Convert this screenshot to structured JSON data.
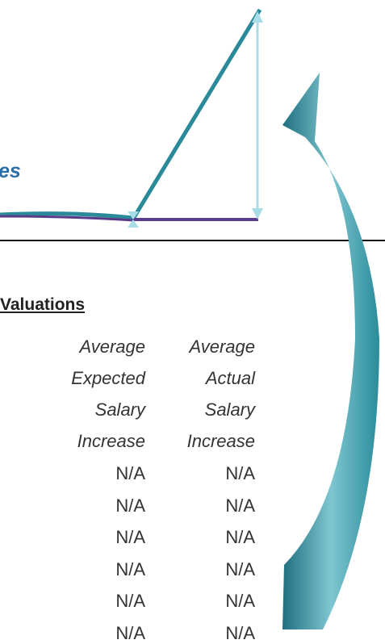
{
  "title_fragment": "es",
  "section_title": "Valuations",
  "table": {
    "headers": [
      [
        "Average",
        "Expected",
        "Salary",
        "Increase"
      ],
      [
        "Average",
        "Actual",
        "Salary",
        "Increase"
      ]
    ],
    "rows": [
      [
        "N/A",
        "N/A"
      ],
      [
        "N/A",
        "N/A"
      ],
      [
        "N/A",
        "N/A"
      ],
      [
        "N/A",
        "N/A"
      ],
      [
        "N/A",
        "N/A"
      ],
      [
        "N/A",
        "N/A"
      ]
    ]
  }
}
